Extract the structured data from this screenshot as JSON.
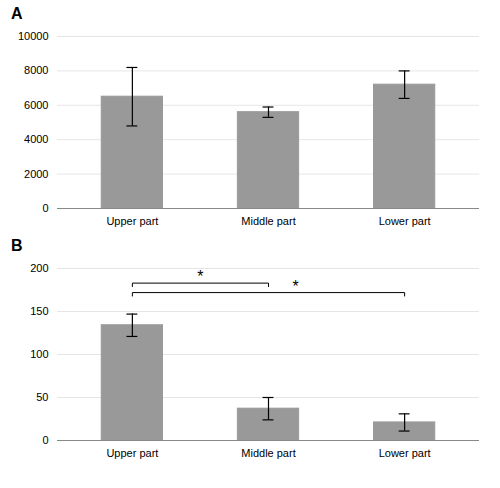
{
  "chart_data": [
    {
      "type": "bar",
      "title": "A",
      "categories": [
        "Upper part",
        "Middle part",
        "Lower part"
      ],
      "values": [
        6500,
        5600,
        7200
      ],
      "errors": [
        1700,
        300,
        800
      ],
      "color": "#999999",
      "ylim": [
        0,
        10000
      ],
      "yticks": [
        0,
        2000,
        4000,
        6000,
        8000,
        10000
      ],
      "grid": true
    },
    {
      "type": "bar",
      "title": "B",
      "categories": [
        "Upper part",
        "Middle part",
        "Lower part"
      ],
      "values": [
        134,
        37,
        21
      ],
      "errors": [
        13,
        13,
        10
      ],
      "color": "#999999",
      "ylim": [
        0,
        200
      ],
      "yticks": [
        0,
        50,
        100,
        150,
        200
      ],
      "grid": true,
      "annotations": [
        {
          "text": "*",
          "from": "Upper part",
          "to": "Middle part",
          "y": 183,
          "tick": 179
        },
        {
          "text": "*",
          "from": "Upper part",
          "to": "Lower part",
          "y": 172,
          "tick": 168
        }
      ]
    }
  ]
}
